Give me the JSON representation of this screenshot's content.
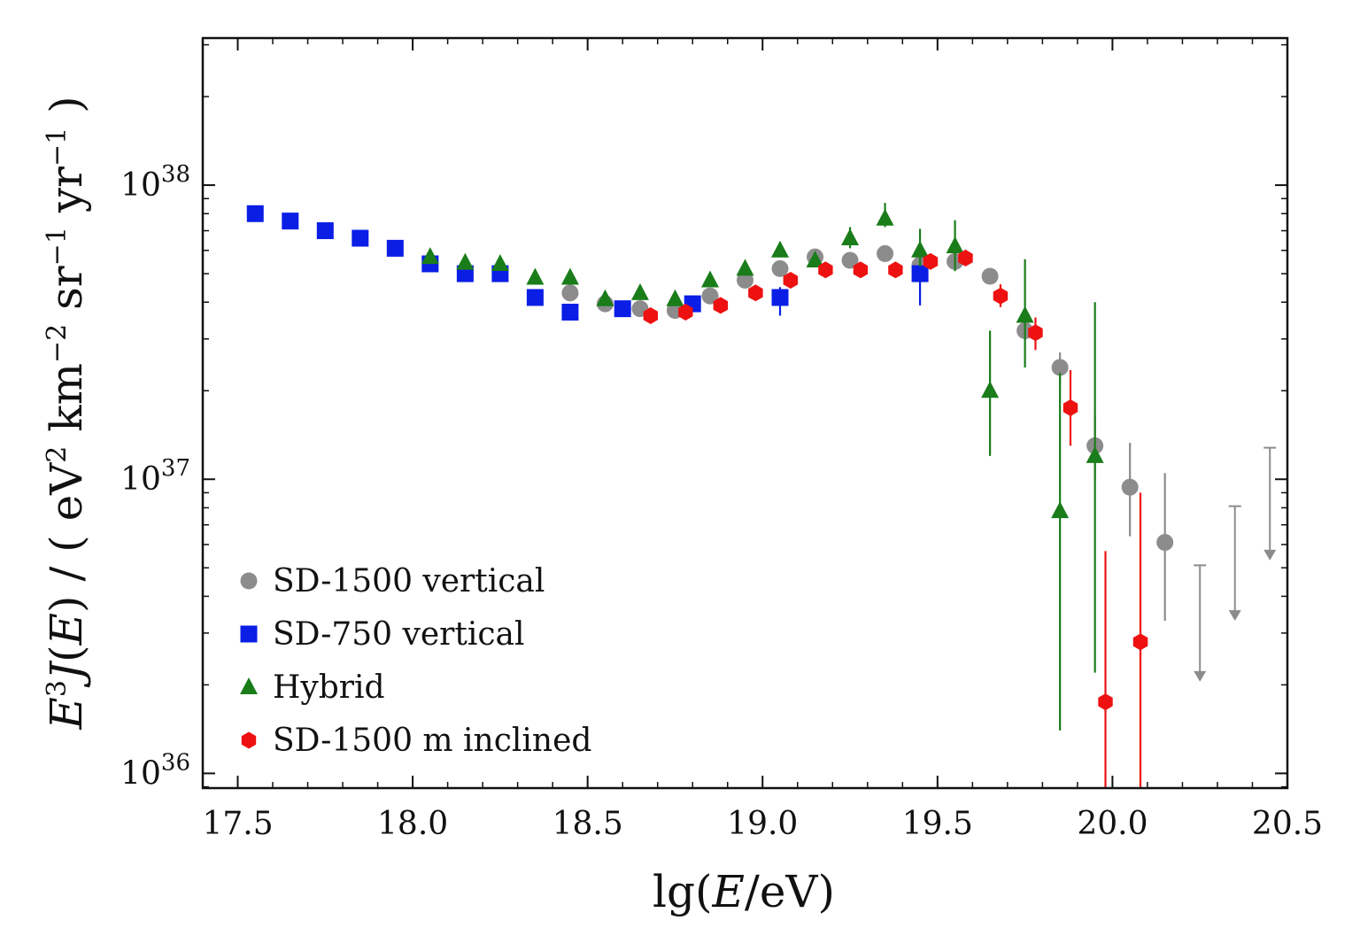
{
  "chart_data": {
    "type": "scatter",
    "title": "",
    "xlabel": "lg(E/eV)",
    "ylabel": "E³J(E) / (eV² km⁻² sr⁻¹ yr⁻¹)",
    "xlim": [
      17.4,
      20.5
    ],
    "ylim_log10": [
      35.95,
      38.5
    ],
    "yscale": "log",
    "x_ticks": [
      17.5,
      18.0,
      18.5,
      19.0,
      19.5,
      20.0,
      20.5
    ],
    "x_tick_labels": [
      "17.5",
      "18.0",
      "18.5",
      "19.0",
      "19.5",
      "20.0",
      "20.5"
    ],
    "y_ticks": [
      {
        "exp": 36,
        "base": "10",
        "sup": "36"
      },
      {
        "exp": 37,
        "base": "10",
        "sup": "37"
      },
      {
        "exp": 38,
        "base": "10",
        "sup": "38"
      }
    ],
    "grid": false,
    "legend_position": "lower-left",
    "series": [
      {
        "name": "SD-1500 vertical",
        "marker": "circle",
        "color": "#8c8c8c",
        "points": [
          {
            "x": 18.45,
            "y": 4.3e+37,
            "lo": 4.15e+37,
            "hi": 4.45e+37
          },
          {
            "x": 18.55,
            "y": 3.95e+37,
            "lo": 3.85e+37,
            "hi": 4.05e+37
          },
          {
            "x": 18.65,
            "y": 3.8e+37,
            "lo": 3.7e+37,
            "hi": 3.9e+37
          },
          {
            "x": 18.75,
            "y": 3.75e+37,
            "lo": 3.65e+37,
            "hi": 3.85e+37
          },
          {
            "x": 18.85,
            "y": 4.2e+37,
            "lo": 4.1e+37,
            "hi": 4.3e+37
          },
          {
            "x": 18.95,
            "y": 4.75e+37,
            "lo": 4.6e+37,
            "hi": 4.9e+37
          },
          {
            "x": 19.05,
            "y": 5.2e+37,
            "lo": 5e+37,
            "hi": 5.4e+37
          },
          {
            "x": 19.15,
            "y": 5.7e+37,
            "lo": 5.5e+37,
            "hi": 5.9e+37
          },
          {
            "x": 19.25,
            "y": 5.55e+37,
            "lo": 5.35e+37,
            "hi": 5.75e+37
          },
          {
            "x": 19.35,
            "y": 5.85e+37,
            "lo": 5.6e+37,
            "hi": 6.1e+37
          },
          {
            "x": 19.45,
            "y": 5.35e+37,
            "lo": 5.1e+37,
            "hi": 5.6e+37
          },
          {
            "x": 19.55,
            "y": 5.5e+37,
            "lo": 5.2e+37,
            "hi": 5.8e+37
          },
          {
            "x": 19.65,
            "y": 4.9e+37,
            "lo": 4.6e+37,
            "hi": 5.2e+37
          },
          {
            "x": 19.75,
            "y": 3.2e+37,
            "lo": 2.95e+37,
            "hi": 3.45e+37
          },
          {
            "x": 19.85,
            "y": 2.4e+37,
            "lo": 2.1e+37,
            "hi": 2.7e+37
          },
          {
            "x": 19.95,
            "y": 1.3e+37,
            "lo": 1e+37,
            "hi": 1.65e+37
          },
          {
            "x": 20.05,
            "y": 9.4e+36,
            "lo": 6.4e+36,
            "hi": 1.33e+37
          },
          {
            "x": 20.15,
            "y": 6.1e+36,
            "lo": 3.3e+36,
            "hi": 1.05e+37
          }
        ],
        "upper_limits": [
          {
            "x": 20.25,
            "y": 5.1e+36,
            "arrow_to": 2.05e+36
          },
          {
            "x": 20.35,
            "y": 8.1e+36,
            "arrow_to": 3.3e+36
          },
          {
            "x": 20.45,
            "y": 1.28e+37,
            "arrow_to": 5.3e+36
          }
        ]
      },
      {
        "name": "SD-750 vertical",
        "marker": "square",
        "color": "#0a1ee6",
        "points": [
          {
            "x": 17.55,
            "y": 8e+37,
            "lo": 7.85e+37,
            "hi": 8.15e+37
          },
          {
            "x": 17.65,
            "y": 7.55e+37,
            "lo": 7.4e+37,
            "hi": 7.7e+37
          },
          {
            "x": 17.75,
            "y": 7e+37,
            "lo": 6.85e+37,
            "hi": 7.15e+37
          },
          {
            "x": 17.85,
            "y": 6.6e+37,
            "lo": 6.45e+37,
            "hi": 6.75e+37
          },
          {
            "x": 17.95,
            "y": 6.1e+37,
            "lo": 5.95e+37,
            "hi": 6.25e+37
          },
          {
            "x": 18.05,
            "y": 5.4e+37,
            "lo": 5.25e+37,
            "hi": 5.55e+37
          },
          {
            "x": 18.15,
            "y": 5e+37,
            "lo": 4.85e+37,
            "hi": 5.15e+37
          },
          {
            "x": 18.25,
            "y": 5e+37,
            "lo": 4.85e+37,
            "hi": 5.15e+37
          },
          {
            "x": 18.35,
            "y": 4.15e+37,
            "lo": 4e+37,
            "hi": 4.3e+37
          },
          {
            "x": 18.45,
            "y": 3.7e+37,
            "lo": 3.6e+37,
            "hi": 3.8e+37
          },
          {
            "x": 18.6,
            "y": 3.8e+37,
            "lo": 3.7e+37,
            "hi": 3.9e+37
          },
          {
            "x": 18.8,
            "y": 3.95e+37,
            "lo": 3.8e+37,
            "hi": 4.1e+37
          },
          {
            "x": 19.05,
            "y": 4.15e+37,
            "lo": 3.6e+37,
            "hi": 4.5e+37
          },
          {
            "x": 19.45,
            "y": 5e+37,
            "lo": 3.9e+37,
            "hi": 6.2e+37
          }
        ]
      },
      {
        "name": "Hybrid",
        "marker": "triangle",
        "color": "#1a7d1a",
        "points": [
          {
            "x": 18.05,
            "y": 5.7e+37,
            "lo": 5.5e+37,
            "hi": 5.9e+37
          },
          {
            "x": 18.15,
            "y": 5.45e+37,
            "lo": 5.25e+37,
            "hi": 5.65e+37
          },
          {
            "x": 18.25,
            "y": 5.4e+37,
            "lo": 5.2e+37,
            "hi": 5.6e+37
          },
          {
            "x": 18.35,
            "y": 4.85e+37,
            "lo": 4.65e+37,
            "hi": 5.05e+37
          },
          {
            "x": 18.45,
            "y": 4.85e+37,
            "lo": 4.65e+37,
            "hi": 5.05e+37
          },
          {
            "x": 18.55,
            "y": 4.1e+37,
            "lo": 3.95e+37,
            "hi": 4.25e+37
          },
          {
            "x": 18.65,
            "y": 4.3e+37,
            "lo": 4.15e+37,
            "hi": 4.45e+37
          },
          {
            "x": 18.75,
            "y": 4.1e+37,
            "lo": 3.95e+37,
            "hi": 4.25e+37
          },
          {
            "x": 18.85,
            "y": 4.75e+37,
            "lo": 4.55e+37,
            "hi": 4.95e+37
          },
          {
            "x": 18.95,
            "y": 5.2e+37,
            "lo": 4.95e+37,
            "hi": 5.45e+37
          },
          {
            "x": 19.05,
            "y": 6e+37,
            "lo": 5.7e+37,
            "hi": 6.3e+37
          },
          {
            "x": 19.15,
            "y": 5.55e+37,
            "lo": 5.3e+37,
            "hi": 5.8e+37
          },
          {
            "x": 19.25,
            "y": 6.6e+37,
            "lo": 6.1e+37,
            "hi": 7.2e+37
          },
          {
            "x": 19.35,
            "y": 7.7e+37,
            "lo": 7.2e+37,
            "hi": 8.7e+37
          },
          {
            "x": 19.45,
            "y": 6e+37,
            "lo": 5.3e+37,
            "hi": 7.1e+37
          },
          {
            "x": 19.55,
            "y": 6.2e+37,
            "lo": 5.1e+37,
            "hi": 7.6e+37
          },
          {
            "x": 19.65,
            "y": 2e+37,
            "lo": 1.2e+37,
            "hi": 3.2e+37
          },
          {
            "x": 19.75,
            "y": 3.6e+37,
            "lo": 2.4e+37,
            "hi": 5.6e+37
          },
          {
            "x": 19.85,
            "y": 7.8e+36,
            "lo": 1.4e+36,
            "hi": 2.3e+37
          },
          {
            "x": 19.95,
            "y": 1.2e+37,
            "lo": 2.2e+36,
            "hi": 4e+37
          }
        ]
      },
      {
        "name": "SD-1500 m inclined",
        "marker": "hexagon",
        "color": "#ee1111",
        "points": [
          {
            "x": 18.68,
            "y": 3.6e+37,
            "lo": 3.5e+37,
            "hi": 3.7e+37
          },
          {
            "x": 18.78,
            "y": 3.7e+37,
            "lo": 3.6e+37,
            "hi": 3.8e+37
          },
          {
            "x": 18.88,
            "y": 3.9e+37,
            "lo": 3.8e+37,
            "hi": 4e+37
          },
          {
            "x": 18.98,
            "y": 4.3e+37,
            "lo": 4.15e+37,
            "hi": 4.45e+37
          },
          {
            "x": 19.08,
            "y": 4.75e+37,
            "lo": 4.55e+37,
            "hi": 4.95e+37
          },
          {
            "x": 19.18,
            "y": 5.15e+37,
            "lo": 4.95e+37,
            "hi": 5.35e+37
          },
          {
            "x": 19.28,
            "y": 5.15e+37,
            "lo": 4.95e+37,
            "hi": 5.35e+37
          },
          {
            "x": 19.38,
            "y": 5.15e+37,
            "lo": 4.95e+37,
            "hi": 5.35e+37
          },
          {
            "x": 19.48,
            "y": 5.5e+37,
            "lo": 5.25e+37,
            "hi": 5.75e+37
          },
          {
            "x": 19.58,
            "y": 5.65e+37,
            "lo": 5.35e+37,
            "hi": 5.95e+37
          },
          {
            "x": 19.68,
            "y": 4.2e+37,
            "lo": 3.85e+37,
            "hi": 4.6e+37
          },
          {
            "x": 19.78,
            "y": 3.15e+37,
            "lo": 2.75e+37,
            "hi": 3.55e+37
          },
          {
            "x": 19.88,
            "y": 1.75e+37,
            "lo": 1.3e+37,
            "hi": 2.35e+37
          },
          {
            "x": 19.98,
            "y": 1.75e+36,
            "lo": 6e+35,
            "hi": 5.7e+36
          },
          {
            "x": 20.08,
            "y": 2.8e+36,
            "lo": 6e+35,
            "hi": 9e+36
          }
        ]
      }
    ],
    "legend": [
      {
        "label": "SD-1500 vertical",
        "marker": "circle",
        "color": "#8c8c8c"
      },
      {
        "label": "SD-750 vertical",
        "marker": "square",
        "color": "#0a1ee6"
      },
      {
        "label": "Hybrid",
        "marker": "triangle",
        "color": "#1a7d1a"
      },
      {
        "label": "SD-1500 m inclined",
        "marker": "hexagon",
        "color": "#ee1111"
      }
    ]
  }
}
